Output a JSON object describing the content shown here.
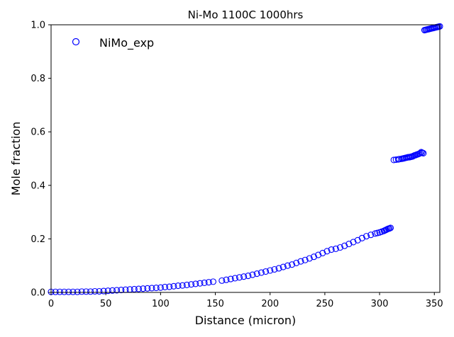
{
  "chart_data": {
    "type": "scatter",
    "title": "Ni-Mo 1100C 1000hrs",
    "xlabel": "Distance (micron)",
    "ylabel": "Mole fraction",
    "xlim": [
      0,
      355
    ],
    "ylim": [
      0,
      1.0
    ],
    "xticks": [
      0,
      50,
      100,
      150,
      200,
      250,
      300,
      350
    ],
    "yticks": [
      0.0,
      0.2,
      0.4,
      0.6,
      0.8,
      1.0
    ],
    "xtick_labels": [
      "0",
      "50",
      "100",
      "150",
      "200",
      "250",
      "300",
      "350"
    ],
    "ytick_labels": [
      "0.0",
      "0.2",
      "0.4",
      "0.6",
      "0.8",
      "1.0"
    ],
    "grid": false,
    "legend_position": "top-left",
    "marker_color": "#0000ff",
    "series": [
      {
        "name": "NiMo_exp",
        "marker": "open-circle",
        "points": [
          [
            0,
            0.002
          ],
          [
            4,
            0.002
          ],
          [
            8,
            0.002
          ],
          [
            12,
            0.002
          ],
          [
            16,
            0.002
          ],
          [
            20,
            0.002
          ],
          [
            24,
            0.002
          ],
          [
            28,
            0.003
          ],
          [
            32,
            0.003
          ],
          [
            36,
            0.003
          ],
          [
            40,
            0.004
          ],
          [
            44,
            0.004
          ],
          [
            48,
            0.005
          ],
          [
            52,
            0.006
          ],
          [
            56,
            0.007
          ],
          [
            60,
            0.008
          ],
          [
            64,
            0.009
          ],
          [
            68,
            0.01
          ],
          [
            72,
            0.011
          ],
          [
            76,
            0.012
          ],
          [
            80,
            0.013
          ],
          [
            84,
            0.014
          ],
          [
            88,
            0.015
          ],
          [
            92,
            0.016
          ],
          [
            96,
            0.017
          ],
          [
            100,
            0.018
          ],
          [
            104,
            0.02
          ],
          [
            108,
            0.021
          ],
          [
            112,
            0.023
          ],
          [
            116,
            0.025
          ],
          [
            120,
            0.026
          ],
          [
            124,
            0.028
          ],
          [
            128,
            0.03
          ],
          [
            132,
            0.032
          ],
          [
            136,
            0.034
          ],
          [
            140,
            0.036
          ],
          [
            144,
            0.038
          ],
          [
            148,
            0.04
          ],
          [
            156,
            0.044
          ],
          [
            160,
            0.047
          ],
          [
            164,
            0.05
          ],
          [
            168,
            0.053
          ],
          [
            172,
            0.056
          ],
          [
            176,
            0.059
          ],
          [
            180,
            0.062
          ],
          [
            184,
            0.066
          ],
          [
            188,
            0.07
          ],
          [
            192,
            0.074
          ],
          [
            196,
            0.078
          ],
          [
            200,
            0.082
          ],
          [
            204,
            0.086
          ],
          [
            208,
            0.09
          ],
          [
            212,
            0.095
          ],
          [
            216,
            0.1
          ],
          [
            220,
            0.104
          ],
          [
            224,
            0.11
          ],
          [
            228,
            0.116
          ],
          [
            232,
            0.121
          ],
          [
            236,
            0.127
          ],
          [
            240,
            0.133
          ],
          [
            244,
            0.14
          ],
          [
            248,
            0.147
          ],
          [
            252,
            0.154
          ],
          [
            256,
            0.16
          ],
          [
            260,
            0.163
          ],
          [
            264,
            0.168
          ],
          [
            268,
            0.174
          ],
          [
            272,
            0.181
          ],
          [
            276,
            0.188
          ],
          [
            280,
            0.195
          ],
          [
            284,
            0.203
          ],
          [
            288,
            0.21
          ],
          [
            292,
            0.215
          ],
          [
            296,
            0.22
          ],
          [
            298,
            0.222
          ],
          [
            300,
            0.224
          ],
          [
            302,
            0.227
          ],
          [
            304,
            0.23
          ],
          [
            305,
            0.232
          ],
          [
            306,
            0.234
          ],
          [
            307,
            0.236
          ],
          [
            308,
            0.238
          ],
          [
            309,
            0.239
          ],
          [
            310,
            0.241
          ],
          [
            313,
            0.495
          ],
          [
            315,
            0.496
          ],
          [
            317,
            0.497
          ],
          [
            318,
            0.498
          ],
          [
            320,
            0.499
          ],
          [
            321,
            0.5
          ],
          [
            322,
            0.501
          ],
          [
            323,
            0.502
          ],
          [
            324,
            0.503
          ],
          [
            325,
            0.504
          ],
          [
            326,
            0.505
          ],
          [
            327,
            0.505
          ],
          [
            328,
            0.506
          ],
          [
            329,
            0.507
          ],
          [
            330,
            0.508
          ],
          [
            331,
            0.51
          ],
          [
            332,
            0.512
          ],
          [
            333,
            0.513
          ],
          [
            334,
            0.515
          ],
          [
            335,
            0.516
          ],
          [
            336,
            0.518
          ],
          [
            337,
            0.52
          ],
          [
            338,
            0.524
          ],
          [
            339,
            0.522
          ],
          [
            340,
            0.52
          ],
          [
            341,
            0.98
          ],
          [
            342,
            0.981
          ],
          [
            343,
            0.982
          ],
          [
            344,
            0.983
          ],
          [
            345,
            0.984
          ],
          [
            346,
            0.985
          ],
          [
            347,
            0.986
          ],
          [
            348,
            0.987
          ],
          [
            349,
            0.988
          ],
          [
            350,
            0.989
          ],
          [
            351,
            0.99
          ],
          [
            352,
            0.991
          ],
          [
            353,
            0.992
          ],
          [
            354,
            0.993
          ],
          [
            355,
            0.994
          ]
        ]
      }
    ]
  }
}
